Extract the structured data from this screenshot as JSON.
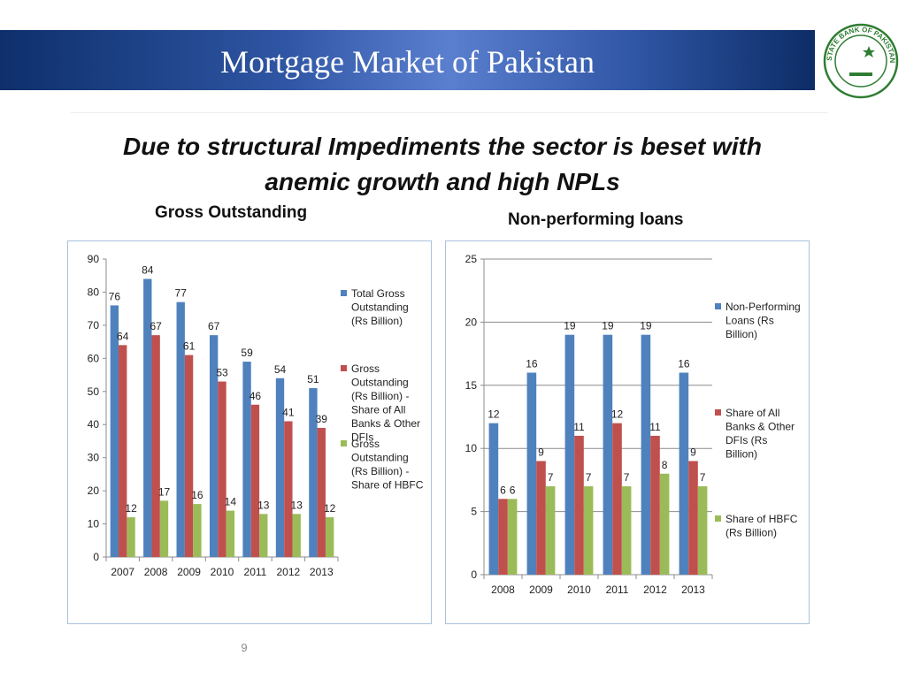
{
  "slide": {
    "title": "Mortgage Market of Pakistan",
    "headline": "Due to structural Impediments the sector is beset with anemic growth and high NPLs",
    "page_number": "9",
    "seal_text": "STATE BANK OF PAKISTAN"
  },
  "chart_data": [
    {
      "type": "bar",
      "title": "Gross Outstanding",
      "categories": [
        "2007",
        "2008",
        "2009",
        "2010",
        "2011",
        "2012",
        "2013"
      ],
      "series": [
        {
          "name": "Total Gross Outstanding (Rs Billion)",
          "color": "#4f81bd",
          "values": [
            76,
            84,
            77,
            67,
            59,
            54,
            51
          ]
        },
        {
          "name": "Gross Outstanding (Rs Billion) - Share of All Banks & Other DFIs",
          "color": "#c0504d",
          "values": [
            64,
            67,
            61,
            53,
            46,
            41,
            39
          ]
        },
        {
          "name": "Gross Outstanding (Rs Billion) - Share of HBFC",
          "color": "#9bbb59",
          "values": [
            12,
            17,
            16,
            14,
            13,
            13,
            12
          ]
        }
      ],
      "ylim": [
        0,
        90
      ],
      "yticks": [
        0,
        10,
        20,
        30,
        40,
        50,
        60,
        70,
        80,
        90
      ],
      "grid": false,
      "legend": "right"
    },
    {
      "type": "bar",
      "title": "Non-performing loans",
      "categories": [
        "2008",
        "2009",
        "2010",
        "2011",
        "2012",
        "2013"
      ],
      "series": [
        {
          "name": "Non-Performing Loans (Rs Billion)",
          "color": "#4f81bd",
          "values": [
            12,
            16,
            19,
            19,
            19,
            16
          ]
        },
        {
          "name": "Share of All Banks & Other DFIs (Rs Billion)",
          "color": "#c0504d",
          "values": [
            6,
            9,
            11,
            12,
            11,
            9
          ]
        },
        {
          "name": "Share of HBFC (Rs Billion)",
          "color": "#9bbb59",
          "values": [
            6,
            7,
            7,
            7,
            8,
            7
          ]
        }
      ],
      "ylim": [
        0,
        25
      ],
      "yticks": [
        0,
        5,
        10,
        15,
        20,
        25
      ],
      "grid": true,
      "legend": "right"
    }
  ]
}
